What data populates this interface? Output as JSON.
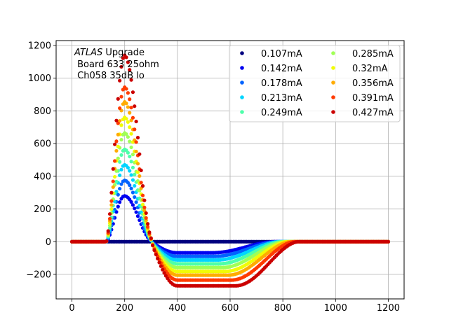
{
  "chart_data": {
    "type": "scatter",
    "title": "",
    "xlabel": "",
    "ylabel": "",
    "xlim": [
      -60,
      1260
    ],
    "ylim": [
      -350,
      1230
    ],
    "xticks": [
      0,
      200,
      400,
      600,
      800,
      1000,
      1200
    ],
    "yticks": [
      -200,
      0,
      200,
      400,
      600,
      800,
      1000,
      1200
    ],
    "xtick_labels": [
      "0",
      "200",
      "400",
      "600",
      "800",
      "1000",
      "1200"
    ],
    "ytick_labels": [
      "−200",
      "0",
      "200",
      "400",
      "600",
      "800",
      "1000",
      "1200"
    ],
    "grid": true,
    "annotation": {
      "line1_italic": "ATLAS",
      "line1_rest": " Upgrade",
      "line2": " Board 633 25ohm",
      "line3": " Ch058 35dB lo"
    },
    "legend": {
      "position": "top-right",
      "columns": 2
    },
    "x_sampling": {
      "start": 0,
      "end": 1200,
      "step": 6.25
    },
    "series": [
      {
        "name": "0.107mA",
        "color": "#00007f",
        "peak": 0,
        "undershoot": 0
      },
      {
        "name": "0.142mA",
        "color": "#0000f0",
        "peak": 280,
        "undershoot": -68
      },
      {
        "name": "0.178mA",
        "color": "#0063ff",
        "peak": 375,
        "undershoot": -90
      },
      {
        "name": "0.213mA",
        "color": "#00d5ff",
        "peak": 470,
        "undershoot": -112
      },
      {
        "name": "0.249mA",
        "color": "#4dffaa",
        "peak": 565,
        "undershoot": -135
      },
      {
        "name": "0.285mA",
        "color": "#a0ff56",
        "peak": 665,
        "undershoot": -158
      },
      {
        "name": "0.32mA",
        "color": "#f1fc06",
        "peak": 760,
        "undershoot": -182
      },
      {
        "name": "0.356mA",
        "color": "#ffac00",
        "peak": 855,
        "undershoot": -205
      },
      {
        "name": "0.391mA",
        "color": "#ff3b00",
        "peak": 945,
        "undershoot": -235
      },
      {
        "name": "0.427mA",
        "color": "#cb0000",
        "peak": 1140,
        "undershoot": -270
      }
    ]
  }
}
